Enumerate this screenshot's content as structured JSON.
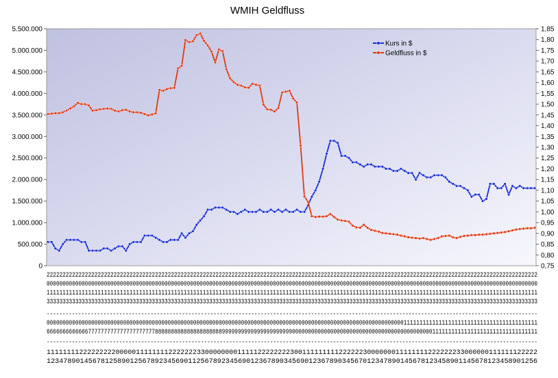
{
  "chart_data": {
    "type": "line",
    "title": "WMIH Geldfluss",
    "left_axis": {
      "ylim": [
        0,
        5500000
      ],
      "ticks": [
        "0",
        "500.000",
        "1.000.000",
        "1.500.000",
        "2.000.000",
        "2.500.000",
        "3.000.000",
        "3.500.000",
        "4.000.000",
        "4.500.000",
        "5.000.000",
        "5.500.000"
      ]
    },
    "right_axis": {
      "ylim": [
        0.75,
        1.85
      ],
      "ticks": [
        "0,75",
        "0,80",
        "0,85",
        "0,90",
        "0,95",
        "1,00",
        "1,05",
        "1,10",
        "1,15",
        "1,20",
        "1,25",
        "1,30",
        "1,35",
        "1,40",
        "1,45",
        "1,50",
        "1,55",
        "1,60",
        "1,65",
        "1,70",
        "1,75",
        "1,80",
        "1,85"
      ]
    },
    "x_label_rows": [
      "2222222222222222222222222222222222222222222222222222222222222222222222222222222222222222222222222222222222222222222222222222222222222222222222222222222222",
      "0000000000000000000000000000000000000000000000000000000000000000000000000000000000000000000000000000000000000000000000000000000000000000000000000000000000",
      "1111111111111111111111111111111111111111111111111111111111111111111111111111111111111111111111111111111111111111111111111111111111111111111111111111111111",
      "3333333333333333333333333333333333333333333333333333333333333333333333333333333333333333333333333333333333333333333333333333333333333333333333333333333333",
      "------------------------------------------------------------------------------------------------------------------------------------------------------------",
      "0000000000000000000000000000000000000000000000000000000000000000000000000000000000000000000000000000000000000000111111111111111111111111111111111111111111",
      "6666666666666777777777777777777777888888888888888888888999999999999999999999900000000000000000000000000000000000000000000111111111111111111111111111111111",
      "------------------------------------------------------------------------------------------------------------------------------------------------------------",
      "1111111122222222200000111111112222222330000000011111222222223001111111112222223000000011111111222222233000000111111122222",
      "1234789014567812589012567892345690112567892345690123678903456901236789034567012347890145678123458901145678123458901256"
    ],
    "series": [
      {
        "name": "Kurs in $",
        "axis": "right",
        "color": "#1a2fd6",
        "values": [
          0.86,
          0.86,
          0.83,
          0.82,
          0.85,
          0.87,
          0.87,
          0.87,
          0.87,
          0.86,
          0.86,
          0.82,
          0.82,
          0.82,
          0.82,
          0.83,
          0.83,
          0.82,
          0.83,
          0.84,
          0.84,
          0.82,
          0.85,
          0.86,
          0.86,
          0.86,
          0.89,
          0.89,
          0.89,
          0.88,
          0.87,
          0.86,
          0.86,
          0.87,
          0.87,
          0.87,
          0.9,
          0.88,
          0.9,
          0.91,
          0.94,
          0.96,
          0.98,
          1.01,
          1.01,
          1.02,
          1.02,
          1.02,
          1.01,
          1.0,
          1.0,
          0.99,
          1.0,
          1.01,
          1.0,
          1.0,
          1.0,
          1.01,
          1.0,
          1.0,
          1.01,
          1.0,
          1.01,
          1.0,
          1.01,
          1.0,
          1.0,
          1.01,
          1.0,
          1.0,
          1.03,
          1.07,
          1.1,
          1.14,
          1.2,
          1.27,
          1.33,
          1.33,
          1.32,
          1.26,
          1.26,
          1.25,
          1.23,
          1.23,
          1.22,
          1.21,
          1.22,
          1.22,
          1.21,
          1.21,
          1.21,
          1.2,
          1.2,
          1.19,
          1.19,
          1.2,
          1.19,
          1.18,
          1.18,
          1.15,
          1.18,
          1.17,
          1.16,
          1.16,
          1.17,
          1.17,
          1.17,
          1.16,
          1.14,
          1.13,
          1.12,
          1.12,
          1.11,
          1.1,
          1.07,
          1.08,
          1.08,
          1.05,
          1.06,
          1.13,
          1.13,
          1.11,
          1.11,
          1.13,
          1.08,
          1.12,
          1.11,
          1.12,
          1.11,
          1.11,
          1.11,
          1.11
        ]
      },
      {
        "name": "Geldfluss in $",
        "axis": "left",
        "color": "#e03a12",
        "values": [
          3520000,
          3530000,
          3540000,
          3540000,
          3560000,
          3600000,
          3650000,
          3700000,
          3780000,
          3750000,
          3750000,
          3720000,
          3600000,
          3610000,
          3630000,
          3640000,
          3650000,
          3640000,
          3600000,
          3580000,
          3610000,
          3620000,
          3580000,
          3560000,
          3560000,
          3550000,
          3520000,
          3490000,
          3510000,
          3540000,
          4080000,
          4060000,
          4100000,
          4120000,
          4130000,
          4580000,
          4640000,
          5240000,
          5190000,
          5210000,
          5350000,
          5390000,
          5220000,
          5110000,
          4970000,
          4720000,
          5020000,
          4980000,
          4560000,
          4350000,
          4260000,
          4200000,
          4180000,
          4140000,
          4130000,
          4220000,
          4200000,
          4180000,
          3740000,
          3630000,
          3620000,
          3580000,
          3660000,
          4020000,
          4040000,
          4060000,
          3880000,
          3790000,
          2790000,
          1610000,
          1480000,
          1150000,
          1130000,
          1140000,
          1140000,
          1150000,
          1200000,
          1130000,
          1070000,
          1050000,
          1040000,
          1020000,
          930000,
          890000,
          880000,
          950000,
          880000,
          830000,
          810000,
          790000,
          760000,
          750000,
          740000,
          730000,
          720000,
          700000,
          680000,
          660000,
          650000,
          640000,
          630000,
          640000,
          620000,
          600000,
          620000,
          640000,
          680000,
          690000,
          700000,
          660000,
          640000,
          670000,
          690000,
          700000,
          710000,
          710000,
          720000,
          720000,
          730000,
          740000,
          750000,
          760000,
          770000,
          780000,
          800000,
          820000,
          840000,
          850000,
          860000,
          870000,
          870000,
          880000
        ]
      }
    ],
    "legend": {
      "position": "top-right",
      "entries": [
        "Kurs in $",
        "Geldfluss in $"
      ]
    }
  }
}
